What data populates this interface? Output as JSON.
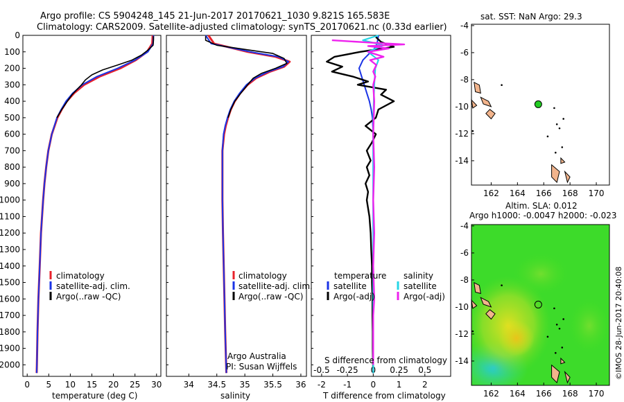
{
  "header": {
    "line1": "Argo profile: CS 5904248_145 21-Jun-2017 20170621_1030 9.821S 165.583E",
    "line2": "Climatology: CARS2009. Satellite-adjusted climatology: synTS_20170621.nc (0.33d earlier)"
  },
  "depth_axis": {
    "ticks": [
      0,
      100,
      200,
      300,
      400,
      500,
      600,
      700,
      800,
      900,
      1000,
      1100,
      1200,
      1300,
      1400,
      1500,
      1600,
      1700,
      1800,
      1900,
      2000
    ]
  },
  "panel_temperature": {
    "xlabel": "temperature (deg C)",
    "legend": [
      "climatology",
      "satellite-adj. clim.",
      "Argo(..raw -QC)"
    ]
  },
  "panel_salinity": {
    "xlabel": "salinity",
    "legend": [
      "climatology",
      "satellite-adj. clim.",
      "Argo(..raw -QC)"
    ],
    "credit1": "Argo Australia",
    "credit2": "PI: Susan Wijffels"
  },
  "panel_diff": {
    "top_label": "S difference from climatology",
    "xlabel": "T difference from climatology",
    "legend_temp_title": "temperature",
    "legend_sal_title": "salinity",
    "legend_items": [
      "satellite",
      "Argo(-adj)",
      "satellite",
      "Argo(-adj)"
    ]
  },
  "map_sst": {
    "title": "sat. SST: NaN Argo: 29.3"
  },
  "map_sla": {
    "title1": "Altim. SLA: 0.012",
    "title2": "Argo h1000: -0.0047 h2000: -0.023"
  },
  "footer": {
    "stamp": "©IMOS 28-Jun-2017 20:40:08"
  },
  "colors": {
    "climatology": "#e8212b",
    "satellite": "#1a33e6",
    "argo": "#000000",
    "sal_satellite": "#25d6e6",
    "sal_argo": "#ee22ee",
    "float_marker": "#22cc22",
    "land": "#f2b48c"
  },
  "chart_data": [
    {
      "type": "line",
      "title": "",
      "xlabel": "temperature (deg C)",
      "ylabel": "",
      "xlim": [
        -1,
        31
      ],
      "ylim": [
        2070,
        0
      ],
      "x_ticks": [
        0,
        5,
        10,
        15,
        20,
        25,
        30
      ],
      "y_inverted": true,
      "series": [
        {
          "name": "climatology",
          "depth": [
            0,
            50,
            100,
            150,
            200,
            250,
            300,
            350,
            400,
            450,
            500,
            600,
            700,
            800,
            900,
            1000,
            1200,
            1400,
            1600,
            1800,
            2000,
            2050
          ],
          "values": [
            29.1,
            29.0,
            27.8,
            25.2,
            21.6,
            16.8,
            13.2,
            10.9,
            9.2,
            8.0,
            7.0,
            5.7,
            4.9,
            4.4,
            4.0,
            3.7,
            3.2,
            2.9,
            2.6,
            2.4,
            2.25,
            2.2
          ]
        },
        {
          "name": "satellite-adj. clim.",
          "depth": [
            0,
            50,
            100,
            150,
            200,
            250,
            300,
            350,
            400,
            450,
            500,
            600,
            700,
            800,
            900,
            1000,
            1200,
            1400,
            1600,
            1800,
            2000,
            2050
          ],
          "values": [
            29.3,
            29.2,
            28.0,
            25.0,
            21.0,
            16.2,
            12.8,
            10.6,
            9.0,
            7.9,
            6.9,
            5.7,
            4.9,
            4.4,
            4.0,
            3.7,
            3.2,
            2.9,
            2.6,
            2.4,
            2.25,
            2.2
          ]
        },
        {
          "name": "Argo(..raw -QC)",
          "depth": [
            5,
            30,
            60,
            90,
            120,
            150,
            180,
            210,
            240,
            270,
            300,
            330,
            360,
            400,
            450,
            500
          ],
          "values": [
            29.3,
            29.3,
            29.2,
            28.0,
            26.5,
            24.3,
            21.0,
            17.5,
            15.0,
            13.5,
            12.6,
            11.5,
            10.4,
            9.3,
            8.0,
            6.9
          ]
        }
      ]
    },
    {
      "type": "line",
      "title": "",
      "xlabel": "salinity",
      "ylabel": "",
      "xlim": [
        33.6,
        36.1
      ],
      "ylim": [
        2070,
        0
      ],
      "x_ticks": [
        34,
        34.5,
        35,
        35.5,
        36
      ],
      "y_inverted": true,
      "series": [
        {
          "name": "climatology",
          "depth": [
            0,
            50,
            100,
            130,
            160,
            190,
            220,
            260,
            300,
            350,
            400,
            450,
            500,
            550,
            600,
            700,
            800,
            1000,
            1200,
            1500,
            1800,
            2050
          ],
          "values": [
            34.35,
            34.45,
            35.05,
            35.55,
            35.8,
            35.7,
            35.45,
            35.2,
            35.05,
            34.92,
            34.82,
            34.75,
            34.7,
            34.66,
            34.63,
            34.6,
            34.6,
            34.6,
            34.61,
            34.63,
            34.65,
            34.67
          ]
        },
        {
          "name": "satellite-adj. clim.",
          "depth": [
            0,
            50,
            100,
            130,
            160,
            190,
            220,
            260,
            300,
            350,
            400,
            450,
            500,
            550,
            600,
            700,
            800,
            1000,
            1200,
            1500,
            1800,
            2050
          ],
          "values": [
            34.3,
            34.4,
            35.1,
            35.6,
            35.78,
            35.68,
            35.42,
            35.18,
            35.03,
            34.91,
            34.81,
            34.74,
            34.69,
            34.65,
            34.62,
            34.6,
            34.6,
            34.6,
            34.61,
            34.63,
            34.65,
            34.67
          ]
        },
        {
          "name": "Argo(..raw -QC)",
          "depth": [
            5,
            30,
            60,
            90,
            110,
            140,
            170,
            200,
            230,
            260,
            300,
            350,
            400,
            450,
            500
          ],
          "values": [
            34.3,
            34.3,
            34.5,
            35.1,
            35.5,
            35.7,
            35.75,
            35.55,
            35.3,
            35.15,
            35.05,
            34.93,
            34.82,
            34.75,
            34.7
          ]
        }
      ]
    },
    {
      "type": "line",
      "title": "",
      "xlabel": "T difference from climatology",
      "ylabel": "",
      "x_label_top": "S difference from climatology",
      "xlim": [
        -2.4,
        3.0
      ],
      "ylim": [
        2070,
        0
      ],
      "x_ticks": [
        -2,
        -1,
        0,
        1,
        2
      ],
      "x_ticks_top": [
        -0.5,
        -0.25,
        0,
        0.25,
        0.5
      ],
      "y_inverted": true,
      "series": [
        {
          "name": "temperature satellite",
          "depth": [
            0,
            50,
            80,
            110,
            150,
            200,
            250,
            300,
            350,
            400,
            450,
            500,
            600,
            800,
            1000,
            1500,
            2050
          ],
          "values": [
            0.2,
            0.15,
            0.05,
            -0.15,
            -0.4,
            -0.55,
            -0.45,
            -0.35,
            -0.25,
            -0.15,
            -0.08,
            -0.03,
            0.0,
            0.0,
            0.0,
            0.0,
            0.0
          ]
        },
        {
          "name": "temperature Argo(-adj)",
          "depth": [
            10,
            40,
            70,
            100,
            130,
            160,
            190,
            220,
            250,
            280,
            300,
            330,
            360,
            400,
            450,
            500,
            550,
            600,
            650,
            700,
            760,
            800,
            850,
            900,
            950,
            1000,
            1050,
            1100,
            1200,
            1300,
            1400,
            1500,
            1600,
            1700,
            1800,
            1900,
            2000,
            2050
          ],
          "values": [
            0.1,
            0.3,
            0.8,
            -0.5,
            -1.5,
            -1.8,
            -1.2,
            -1.6,
            -0.8,
            -0.2,
            -0.6,
            0.5,
            0.3,
            0.8,
            0.2,
            0.1,
            -0.3,
            0.1,
            -0.05,
            -0.25,
            -0.1,
            -0.25,
            -0.15,
            -0.3,
            -0.2,
            -0.25,
            -0.2,
            -0.15,
            -0.1,
            -0.08,
            -0.05,
            -0.05,
            -0.03,
            -0.03,
            -0.02,
            -0.02,
            -0.01,
            0.0
          ]
        },
        {
          "name": "salinity satellite",
          "depth": [
            0,
            30,
            60,
            100,
            150,
            200,
            300,
            500,
            1000,
            2050
          ],
          "values": [
            0.05,
            -0.1,
            0.1,
            -0.05,
            0.05,
            0.02,
            0.01,
            0.0,
            0.0,
            0.0
          ]
        },
        {
          "name": "salinity Argo(-adj)",
          "depth": [
            30,
            45,
            55,
            65,
            80,
            100,
            130,
            150,
            180,
            220,
            250,
            300,
            400,
            600,
            800,
            1000,
            1200,
            1400,
            1600,
            1700,
            1800,
            1900,
            2000
          ],
          "values": [
            -0.4,
            0.0,
            0.3,
            -0.05,
            0.15,
            -0.05,
            0.1,
            -0.03,
            0.03,
            0.0,
            0.02,
            0.0,
            0.01,
            0.0,
            0.01,
            0.0,
            0.01,
            0.0,
            0.01,
            0.0,
            0.0,
            0.0,
            0.0
          ]
        }
      ]
    },
    {
      "type": "scatter",
      "title": "sat. SST: NaN Argo: 29.3",
      "xlim": [
        160.5,
        171
      ],
      "ylim": [
        -15.8,
        -3.9
      ],
      "x_ticks": [
        162,
        164,
        166,
        168,
        170
      ],
      "y_ticks": [
        -14,
        -12,
        -10,
        -8,
        -6,
        -4
      ],
      "points": [
        {
          "x": 165.583,
          "y": -9.821
        }
      ]
    },
    {
      "type": "heatmap",
      "title": "Altim. SLA: 0.012 / Argo h1000: -0.0047 h2000: -0.023",
      "xlim": [
        160.5,
        171
      ],
      "ylim": [
        -15.8,
        -3.9
      ],
      "x_ticks": [
        162,
        164,
        166,
        168,
        170
      ],
      "y_ticks": [
        -14,
        -12,
        -10,
        -8,
        -6,
        -4
      ],
      "points": [
        {
          "x": 165.583,
          "y": -9.821
        }
      ]
    }
  ]
}
